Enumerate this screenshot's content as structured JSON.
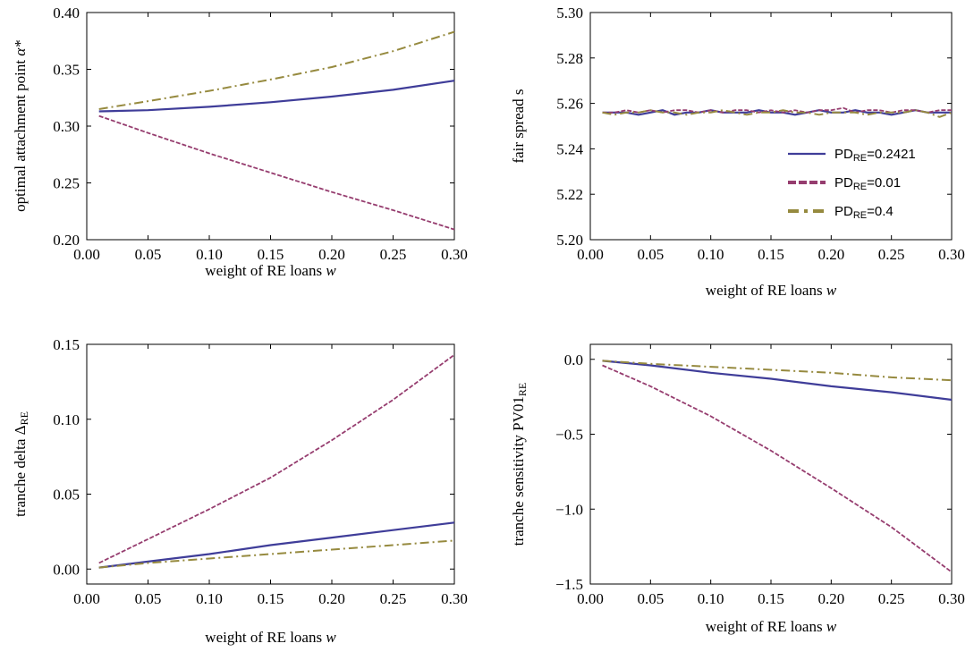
{
  "colors": {
    "pd_base": "#3f3d99",
    "pd_low": "#963d6f",
    "pd_high": "#968a3f"
  },
  "legend": {
    "placement": "right-center of top-right panel",
    "entries": [
      {
        "prefix": "PD",
        "sub": "RE",
        "suffix": "=0.2421"
      },
      {
        "prefix": "PD",
        "sub": "RE",
        "suffix": "=0.01"
      },
      {
        "prefix": "PD",
        "sub": "RE",
        "suffix": "=0.4"
      }
    ]
  },
  "chart_data": [
    {
      "type": "line",
      "xlabel_text": "weight of RE loans ",
      "xlabel_var": "w",
      "ylabel_text": "optimal attachment point ",
      "ylabel_var": "α*",
      "xlim": [
        0,
        0.3
      ],
      "ylim": [
        0.2,
        0.4
      ],
      "xticks": [
        0,
        0.05,
        0.1,
        0.15,
        0.2,
        0.25,
        0.3
      ],
      "xtick_labels": [
        "0.00",
        "0.05",
        "0.10",
        "0.15",
        "0.20",
        "0.25",
        "0.30"
      ],
      "yticks": [
        0.2,
        0.25,
        0.3,
        0.35,
        0.4
      ],
      "ytick_labels": [
        "0.20",
        "0.25",
        "0.30",
        "0.35",
        "0.40"
      ],
      "x": [
        0.01,
        0.05,
        0.1,
        0.15,
        0.2,
        0.25,
        0.3
      ],
      "series": [
        {
          "style": "solid",
          "color_key": "pd_base",
          "values": [
            0.313,
            0.314,
            0.317,
            0.321,
            0.326,
            0.332,
            0.34
          ]
        },
        {
          "style": "dashed",
          "color_key": "pd_low",
          "values": [
            0.309,
            0.294,
            0.276,
            0.259,
            0.242,
            0.226,
            0.209
          ]
        },
        {
          "style": "dashdot",
          "color_key": "pd_high",
          "values": [
            0.315,
            0.322,
            0.331,
            0.341,
            0.352,
            0.366,
            0.383
          ]
        }
      ]
    },
    {
      "type": "line",
      "xlabel_text": "weight of RE loans ",
      "xlabel_var": "w",
      "ylabel_text": "fair spread s",
      "ylabel_var": "",
      "xlim": [
        0,
        0.3
      ],
      "ylim": [
        5.2,
        5.3
      ],
      "xticks": [
        0,
        0.05,
        0.1,
        0.15,
        0.2,
        0.25,
        0.3
      ],
      "xtick_labels": [
        "0.00",
        "0.05",
        "0.10",
        "0.15",
        "0.20",
        "0.25",
        "0.30"
      ],
      "yticks": [
        5.2,
        5.22,
        5.24,
        5.26,
        5.28,
        5.3
      ],
      "ytick_labels": [
        "5.20",
        "5.22",
        "5.24",
        "5.26",
        "5.28",
        "5.30"
      ],
      "x": [
        0.01,
        0.02,
        0.03,
        0.04,
        0.05,
        0.06,
        0.07,
        0.08,
        0.09,
        0.1,
        0.11,
        0.12,
        0.13,
        0.14,
        0.15,
        0.16,
        0.17,
        0.18,
        0.19,
        0.2,
        0.21,
        0.22,
        0.23,
        0.24,
        0.25,
        0.26,
        0.27,
        0.28,
        0.29,
        0.3
      ],
      "series": [
        {
          "style": "solid",
          "color_key": "pd_base",
          "values": [
            5.256,
            5.256,
            5.256,
            5.255,
            5.256,
            5.257,
            5.255,
            5.256,
            5.256,
            5.257,
            5.256,
            5.256,
            5.256,
            5.257,
            5.256,
            5.256,
            5.255,
            5.256,
            5.257,
            5.256,
            5.256,
            5.257,
            5.256,
            5.256,
            5.255,
            5.256,
            5.257,
            5.256,
            5.256,
            5.256
          ]
        },
        {
          "style": "dashed",
          "color_key": "pd_low",
          "values": [
            5.256,
            5.256,
            5.257,
            5.256,
            5.257,
            5.256,
            5.257,
            5.257,
            5.256,
            5.257,
            5.256,
            5.257,
            5.257,
            5.256,
            5.257,
            5.256,
            5.257,
            5.256,
            5.257,
            5.257,
            5.258,
            5.256,
            5.257,
            5.257,
            5.256,
            5.257,
            5.257,
            5.256,
            5.257,
            5.257
          ]
        },
        {
          "style": "dashdot",
          "color_key": "pd_high",
          "values": [
            5.256,
            5.255,
            5.256,
            5.256,
            5.257,
            5.256,
            5.256,
            5.255,
            5.256,
            5.256,
            5.257,
            5.256,
            5.255,
            5.256,
            5.256,
            5.257,
            5.256,
            5.256,
            5.255,
            5.256,
            5.256,
            5.256,
            5.255,
            5.256,
            5.256,
            5.256,
            5.257,
            5.256,
            5.254,
            5.256
          ]
        }
      ]
    },
    {
      "type": "line",
      "xlabel_text": "weight of RE loans ",
      "xlabel_var": "w",
      "ylabel_text": "tranche delta Δ",
      "ylabel_var": "",
      "ylabel_sub": "RE",
      "xlim": [
        0,
        0.3
      ],
      "ylim": [
        -0.01,
        0.15
      ],
      "xticks": [
        0,
        0.05,
        0.1,
        0.15,
        0.2,
        0.25,
        0.3
      ],
      "xtick_labels": [
        "0.00",
        "0.05",
        "0.10",
        "0.15",
        "0.20",
        "0.25",
        "0.30"
      ],
      "yticks": [
        0,
        0.05,
        0.1,
        0.15
      ],
      "ytick_labels": [
        "0.00",
        "0.05",
        "0.10",
        "0.15"
      ],
      "x": [
        0.01,
        0.05,
        0.1,
        0.15,
        0.2,
        0.25,
        0.3
      ],
      "series": [
        {
          "style": "solid",
          "color_key": "pd_base",
          "values": [
            0.001,
            0.005,
            0.01,
            0.016,
            0.021,
            0.026,
            0.031
          ]
        },
        {
          "style": "dashed",
          "color_key": "pd_low",
          "values": [
            0.004,
            0.02,
            0.04,
            0.061,
            0.086,
            0.113,
            0.143
          ]
        },
        {
          "style": "dashdot",
          "color_key": "pd_high",
          "values": [
            0.001,
            0.004,
            0.007,
            0.01,
            0.013,
            0.016,
            0.019
          ]
        }
      ]
    },
    {
      "type": "line",
      "xlabel_text": "weight of RE loans ",
      "xlabel_var": "w",
      "ylabel_text": "tranche sensitivity PV01",
      "ylabel_var": "",
      "ylabel_sub": "RE",
      "xlim": [
        0,
        0.3
      ],
      "ylim": [
        -1.5,
        0.1
      ],
      "xticks": [
        0,
        0.05,
        0.1,
        0.15,
        0.2,
        0.25,
        0.3
      ],
      "xtick_labels": [
        "0.00",
        "0.05",
        "0.10",
        "0.15",
        "0.20",
        "0.25",
        "0.30"
      ],
      "yticks": [
        0,
        -0.5,
        -1.0,
        -1.5
      ],
      "ytick_labels": [
        "0.0",
        "−0.5",
        "−1.0",
        "−1.5"
      ],
      "x": [
        0.01,
        0.05,
        0.1,
        0.15,
        0.2,
        0.25,
        0.3
      ],
      "series": [
        {
          "style": "solid",
          "color_key": "pd_base",
          "values": [
            -0.01,
            -0.04,
            -0.09,
            -0.13,
            -0.18,
            -0.22,
            -0.27
          ]
        },
        {
          "style": "dashed",
          "color_key": "pd_low",
          "values": [
            -0.04,
            -0.18,
            -0.38,
            -0.61,
            -0.86,
            -1.12,
            -1.42
          ]
        },
        {
          "style": "dashdot",
          "color_key": "pd_high",
          "values": [
            -0.01,
            -0.03,
            -0.05,
            -0.07,
            -0.09,
            -0.12,
            -0.14
          ]
        }
      ]
    }
  ]
}
